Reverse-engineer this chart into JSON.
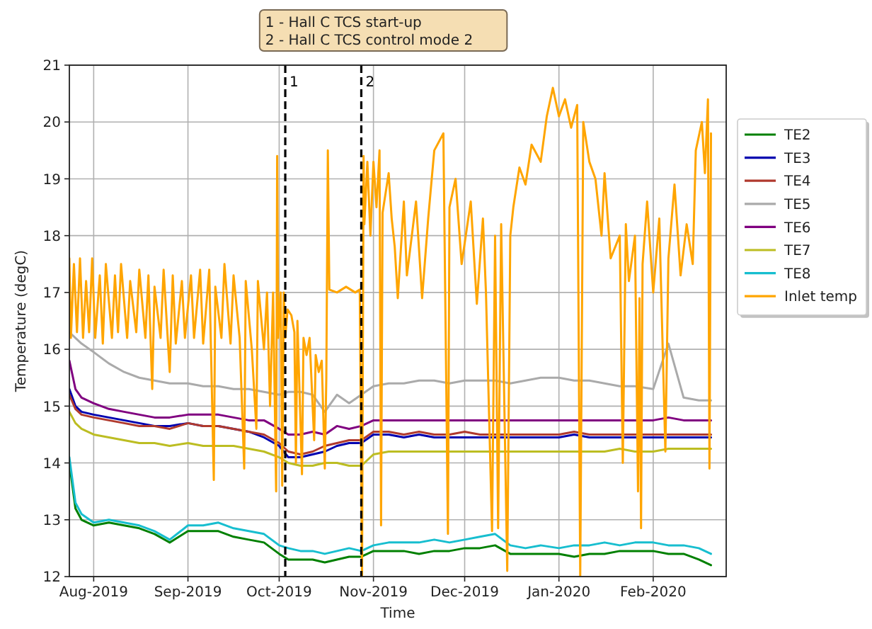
{
  "chart_data": {
    "type": "line",
    "xlabel": "Time",
    "ylabel": "Temperature (degC)",
    "annotations": [
      "1 - Hall C TCS start-up",
      "2 - Hall C TCS control mode 2"
    ],
    "xlim": [
      "2019-07-24",
      "2020-02-25"
    ],
    "xticks": [
      {
        "value": "2019-08-01",
        "label": "Aug-2019"
      },
      {
        "value": "2019-09-01",
        "label": "Sep-2019"
      },
      {
        "value": "2019-10-01",
        "label": "Oct-2019"
      },
      {
        "value": "2019-11-01",
        "label": "Nov-2019"
      },
      {
        "value": "2019-12-01",
        "label": "Dec-2019"
      },
      {
        "value": "2020-01-01",
        "label": "Jan-2020"
      },
      {
        "value": "2020-02-01",
        "label": "Feb-2020"
      }
    ],
    "ylim": [
      12,
      21
    ],
    "yticks": [
      12,
      13,
      14,
      15,
      16,
      17,
      18,
      19,
      20,
      21
    ],
    "grid": true,
    "legend": "right",
    "ref_lines": [
      {
        "axis": "x",
        "value": "2019-10-03",
        "label": "1",
        "color": "#000000",
        "line_style": "dashed"
      },
      {
        "axis": "x",
        "value": "2019-10-28",
        "label": "2",
        "color": "#000000",
        "line_style": "dashed"
      }
    ],
    "x": [
      "2019-07-24",
      "2019-07-26",
      "2019-07-28",
      "2019-08-01",
      "2019-08-06",
      "2019-08-11",
      "2019-08-16",
      "2019-08-21",
      "2019-08-26",
      "2019-09-01",
      "2019-09-06",
      "2019-09-11",
      "2019-09-16",
      "2019-09-21",
      "2019-09-26",
      "2019-10-01",
      "2019-10-04",
      "2019-10-08",
      "2019-10-12",
      "2019-10-16",
      "2019-10-20",
      "2019-10-24",
      "2019-10-28",
      "2019-11-01",
      "2019-11-06",
      "2019-11-11",
      "2019-11-16",
      "2019-11-21",
      "2019-11-26",
      "2019-12-01",
      "2019-12-06",
      "2019-12-11",
      "2019-12-16",
      "2019-12-21",
      "2019-12-26",
      "2020-01-01",
      "2020-01-06",
      "2020-01-11",
      "2020-01-16",
      "2020-01-21",
      "2020-01-26",
      "2020-02-01",
      "2020-02-06",
      "2020-02-11",
      "2020-02-16",
      "2020-02-20"
    ],
    "series": [
      {
        "name": "TE2",
        "color": "#008000",
        "values": [
          14.0,
          13.2,
          13.0,
          12.9,
          12.95,
          12.9,
          12.85,
          12.75,
          12.6,
          12.8,
          12.8,
          12.8,
          12.7,
          12.65,
          12.6,
          12.4,
          12.3,
          12.3,
          12.3,
          12.25,
          12.3,
          12.35,
          12.35,
          12.45,
          12.45,
          12.45,
          12.4,
          12.45,
          12.45,
          12.5,
          12.5,
          12.55,
          12.4,
          12.4,
          12.4,
          12.4,
          12.35,
          12.4,
          12.4,
          12.45,
          12.45,
          12.45,
          12.4,
          12.4,
          12.3,
          12.2
        ]
      },
      {
        "name": "TE3",
        "color": "#0000b0",
        "values": [
          15.3,
          15.0,
          14.9,
          14.85,
          14.8,
          14.75,
          14.7,
          14.65,
          14.65,
          14.7,
          14.65,
          14.65,
          14.6,
          14.55,
          14.45,
          14.3,
          14.1,
          14.1,
          14.15,
          14.2,
          14.3,
          14.35,
          14.35,
          14.5,
          14.5,
          14.45,
          14.5,
          14.45,
          14.45,
          14.45,
          14.45,
          14.45,
          14.45,
          14.45,
          14.45,
          14.45,
          14.5,
          14.45,
          14.45,
          14.45,
          14.45,
          14.45,
          14.45,
          14.45,
          14.45,
          14.45
        ]
      },
      {
        "name": "TE4",
        "color": "#b03a2e",
        "values": [
          15.2,
          14.95,
          14.85,
          14.8,
          14.75,
          14.7,
          14.65,
          14.65,
          14.6,
          14.7,
          14.65,
          14.65,
          14.6,
          14.55,
          14.5,
          14.35,
          14.2,
          14.15,
          14.2,
          14.3,
          14.35,
          14.4,
          14.4,
          14.55,
          14.55,
          14.5,
          14.55,
          14.5,
          14.5,
          14.55,
          14.5,
          14.5,
          14.5,
          14.5,
          14.5,
          14.5,
          14.55,
          14.5,
          14.5,
          14.5,
          14.5,
          14.5,
          14.5,
          14.5,
          14.5,
          14.5
        ]
      },
      {
        "name": "TE5",
        "color": "#aaaaaa",
        "values": [
          16.3,
          16.2,
          16.1,
          15.95,
          15.75,
          15.6,
          15.5,
          15.45,
          15.4,
          15.4,
          15.35,
          15.35,
          15.3,
          15.3,
          15.25,
          15.2,
          15.25,
          15.25,
          15.2,
          14.9,
          15.2,
          15.05,
          15.2,
          15.35,
          15.4,
          15.4,
          15.45,
          15.45,
          15.4,
          15.45,
          15.45,
          15.45,
          15.4,
          15.45,
          15.5,
          15.5,
          15.45,
          15.45,
          15.4,
          15.35,
          15.35,
          15.3,
          16.1,
          15.15,
          15.1,
          15.1
        ]
      },
      {
        "name": "TE6",
        "color": "#800080",
        "values": [
          15.8,
          15.3,
          15.15,
          15.05,
          14.95,
          14.9,
          14.85,
          14.8,
          14.8,
          14.85,
          14.85,
          14.85,
          14.8,
          14.75,
          14.75,
          14.6,
          14.5,
          14.5,
          14.55,
          14.5,
          14.65,
          14.6,
          14.65,
          14.75,
          14.75,
          14.75,
          14.75,
          14.75,
          14.75,
          14.75,
          14.75,
          14.75,
          14.75,
          14.75,
          14.75,
          14.75,
          14.75,
          14.75,
          14.75,
          14.75,
          14.75,
          14.75,
          14.8,
          14.75,
          14.75,
          14.75
        ]
      },
      {
        "name": "TE7",
        "color": "#bcbd22",
        "values": [
          14.9,
          14.7,
          14.6,
          14.5,
          14.45,
          14.4,
          14.35,
          14.35,
          14.3,
          14.35,
          14.3,
          14.3,
          14.3,
          14.25,
          14.2,
          14.1,
          14.0,
          13.95,
          13.95,
          14.0,
          14.0,
          13.95,
          13.95,
          14.15,
          14.2,
          14.2,
          14.2,
          14.2,
          14.2,
          14.2,
          14.2,
          14.2,
          14.2,
          14.2,
          14.2,
          14.2,
          14.2,
          14.2,
          14.2,
          14.25,
          14.2,
          14.2,
          14.25,
          14.25,
          14.25,
          14.25
        ]
      },
      {
        "name": "TE8",
        "color": "#17becf",
        "values": [
          14.1,
          13.3,
          13.1,
          12.95,
          13.0,
          12.95,
          12.9,
          12.8,
          12.65,
          12.9,
          12.9,
          12.95,
          12.85,
          12.8,
          12.75,
          12.55,
          12.5,
          12.45,
          12.45,
          12.4,
          12.45,
          12.5,
          12.45,
          12.55,
          12.6,
          12.6,
          12.6,
          12.65,
          12.6,
          12.65,
          12.7,
          12.75,
          12.55,
          12.5,
          12.55,
          12.5,
          12.55,
          12.55,
          12.6,
          12.55,
          12.6,
          12.6,
          12.55,
          12.55,
          12.5,
          12.4
        ]
      },
      {
        "name": "Inlet temp",
        "color": "#ffa500",
        "x": [
          "2019-07-24T00:00",
          "2019-07-24T12:00",
          "2019-07-25T12:00",
          "2019-07-26T12:00",
          "2019-07-27T12:00",
          "2019-07-28T12:00",
          "2019-07-29T12:00",
          "2019-07-30T12:00",
          "2019-07-31T12:00",
          "2019-08-01T12:00",
          "2019-08-03",
          "2019-08-04",
          "2019-08-05",
          "2019-08-07",
          "2019-08-08",
          "2019-08-09",
          "2019-08-10",
          "2019-08-12",
          "2019-08-13",
          "2019-08-15",
          "2019-08-16",
          "2019-08-18",
          "2019-08-19",
          "2019-08-20T06:00",
          "2019-08-21",
          "2019-08-23",
          "2019-08-24",
          "2019-08-26",
          "2019-08-27",
          "2019-08-28",
          "2019-08-30",
          "2019-08-31",
          "2019-09-02",
          "2019-09-03",
          "2019-09-05",
          "2019-09-06",
          "2019-09-08",
          "2019-09-09T12:00",
          "2019-09-10",
          "2019-09-12",
          "2019-09-13",
          "2019-09-15",
          "2019-09-16",
          "2019-09-18",
          "2019-09-19T12:00",
          "2019-09-20",
          "2019-09-22",
          "2019-09-23T12:00",
          "2019-09-24",
          "2019-09-26",
          "2019-09-27",
          "2019-09-28",
          "2019-09-29",
          "2019-09-30T00:00",
          "2019-09-30T08:00",
          "2019-09-30T16:00",
          "2019-10-01T12:00",
          "2019-10-02T00:00",
          "2019-10-02T12:00",
          "2019-10-03T00:00",
          "2019-10-03T18:00",
          "2019-10-05",
          "2019-10-06",
          "2019-10-06T12:00",
          "2019-10-07",
          "2019-10-08T12:00",
          "2019-10-09",
          "2019-10-10",
          "2019-10-11",
          "2019-10-12T12:00",
          "2019-10-13",
          "2019-10-14",
          "2019-10-15",
          "2019-10-16T00:00",
          "2019-10-16T12:00",
          "2019-10-17T00:00",
          "2019-10-17T12:00",
          "2019-10-20",
          "2019-10-23",
          "2019-10-26",
          "2019-10-27T12:00",
          "2019-10-28T06:00",
          "2019-10-28T18:00",
          "2019-10-29",
          "2019-10-30",
          "2019-10-31",
          "2019-11-01",
          "2019-11-02",
          "2019-11-03",
          "2019-11-03T12:00",
          "2019-11-04",
          "2019-11-06",
          "2019-11-07",
          "2019-11-08",
          "2019-11-09",
          "2019-11-11",
          "2019-11-12",
          "2019-11-15",
          "2019-11-17",
          "2019-11-19",
          "2019-11-21",
          "2019-11-24",
          "2019-11-25T12:00",
          "2019-11-26",
          "2019-11-28",
          "2019-11-30",
          "2019-12-03",
          "2019-12-05",
          "2019-12-07",
          "2019-12-08",
          "2019-12-10",
          "2019-12-11",
          "2019-12-12",
          "2019-12-13",
          "2019-12-15",
          "2019-12-16",
          "2019-12-17",
          "2019-12-19",
          "2019-12-21",
          "2019-12-23",
          "2019-12-26",
          "2019-12-28",
          "2019-12-30",
          "2020-01-01",
          "2020-01-03",
          "2020-01-05",
          "2020-01-07",
          "2020-01-08",
          "2020-01-09",
          "2020-01-11",
          "2020-01-13",
          "2020-01-15",
          "2020-01-16",
          "2020-01-18",
          "2020-01-21",
          "2020-01-22",
          "2020-01-23",
          "2020-01-24",
          "2020-01-26",
          "2020-01-27",
          "2020-01-27T12:00",
          "2020-01-28",
          "2020-01-28T12:00",
          "2020-01-30",
          "2020-02-01",
          "2020-02-03",
          "2020-02-05",
          "2020-02-06",
          "2020-02-08",
          "2020-02-10",
          "2020-02-12",
          "2020-02-14",
          "2020-02-15",
          "2020-02-17",
          "2020-02-18",
          "2020-02-19",
          "2020-02-19T12:00",
          "2020-02-20"
        ],
        "values": [
          17.6,
          16.2,
          17.5,
          16.3,
          17.6,
          16.2,
          17.2,
          16.3,
          17.6,
          16.2,
          17.3,
          16.1,
          17.5,
          16.2,
          17.3,
          16.3,
          17.5,
          16.2,
          17.2,
          16.3,
          17.4,
          16.2,
          17.3,
          15.3,
          17.1,
          16.2,
          17.4,
          15.6,
          17.3,
          16.1,
          17.2,
          16.2,
          17.3,
          16.2,
          17.4,
          16.1,
          17.4,
          13.7,
          17.1,
          16.2,
          17.5,
          16.1,
          17.3,
          16.2,
          13.9,
          17.2,
          16.0,
          14.6,
          17.2,
          16.0,
          17.0,
          15.0,
          17.0,
          13.5,
          19.4,
          16.2,
          17.0,
          13.6,
          17.0,
          16.2,
          16.7,
          16.6,
          16.3,
          14.0,
          16.5,
          13.8,
          16.2,
          15.9,
          16.2,
          14.4,
          15.9,
          15.6,
          15.8,
          13.9,
          15.5,
          19.5,
          17.05,
          17.0,
          17.1,
          17.0,
          17.05,
          12.0,
          19.4,
          18.2,
          19.3,
          18.0,
          19.3,
          18.5,
          19.5,
          12.9,
          18.4,
          19.1,
          18.3,
          17.8,
          16.9,
          18.6,
          17.3,
          18.6,
          16.9,
          18.3,
          19.5,
          19.8,
          12.75,
          18.5,
          19.0,
          17.5,
          18.6,
          16.8,
          18.3,
          17.0,
          12.8,
          18.0,
          12.85,
          18.2,
          12.1,
          18.0,
          18.5,
          19.2,
          18.9,
          19.6,
          19.3,
          20.1,
          20.6,
          20.1,
          20.4,
          19.9,
          20.3,
          12.0,
          20.0,
          19.3,
          19.0,
          18.0,
          19.1,
          17.6,
          18.0,
          14.0,
          18.2,
          17.2,
          18.0,
          13.5,
          16.9,
          12.85,
          17.5,
          18.6,
          17.0,
          18.3,
          14.2,
          17.6,
          18.9,
          17.3,
          18.2,
          17.5,
          19.5,
          20.0,
          19.1,
          20.4,
          13.9,
          19.8
        ]
      }
    ]
  }
}
